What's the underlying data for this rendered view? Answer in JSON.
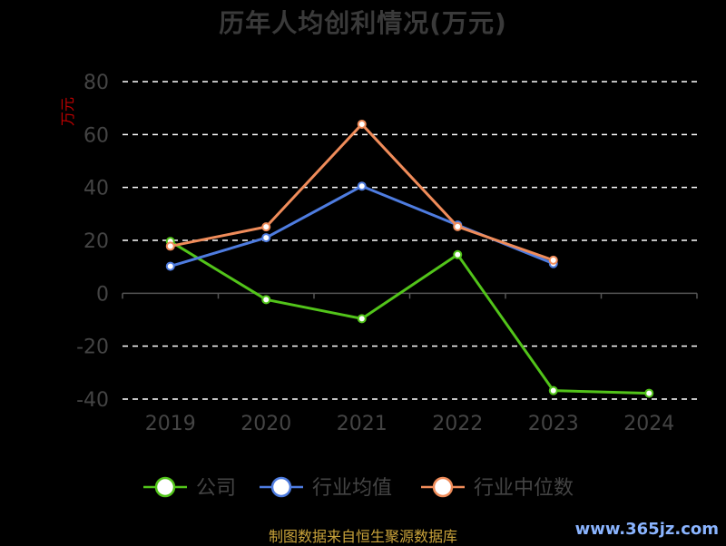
{
  "title": "历年人均创利情况(万元)",
  "chart_data": {
    "type": "line",
    "ylabel": "万元",
    "ylim": [
      -40,
      80
    ],
    "yticks": [
      -40,
      -20,
      0,
      20,
      40,
      60,
      80
    ],
    "categories": [
      "2019",
      "2020",
      "2021",
      "2022",
      "2023",
      "2024"
    ],
    "grid": true,
    "legend_position": "bottom",
    "series": [
      {
        "name": "公司",
        "color": "#52c41a",
        "values": [
          19.6,
          -2.4,
          -9.6,
          14.6,
          -36.8,
          -37.8
        ]
      },
      {
        "name": "行业均值",
        "color": "#4e7ce0",
        "values": [
          10.2,
          21.0,
          40.5,
          25.8,
          11.2,
          null
        ]
      },
      {
        "name": "行业中位数",
        "color": "#f08c5a",
        "values": [
          17.8,
          25.1,
          63.9,
          25.2,
          12.5,
          null
        ]
      }
    ]
  },
  "footer": "制图数据来自恒生聚源数据库",
  "watermark": "www.365jz.com"
}
